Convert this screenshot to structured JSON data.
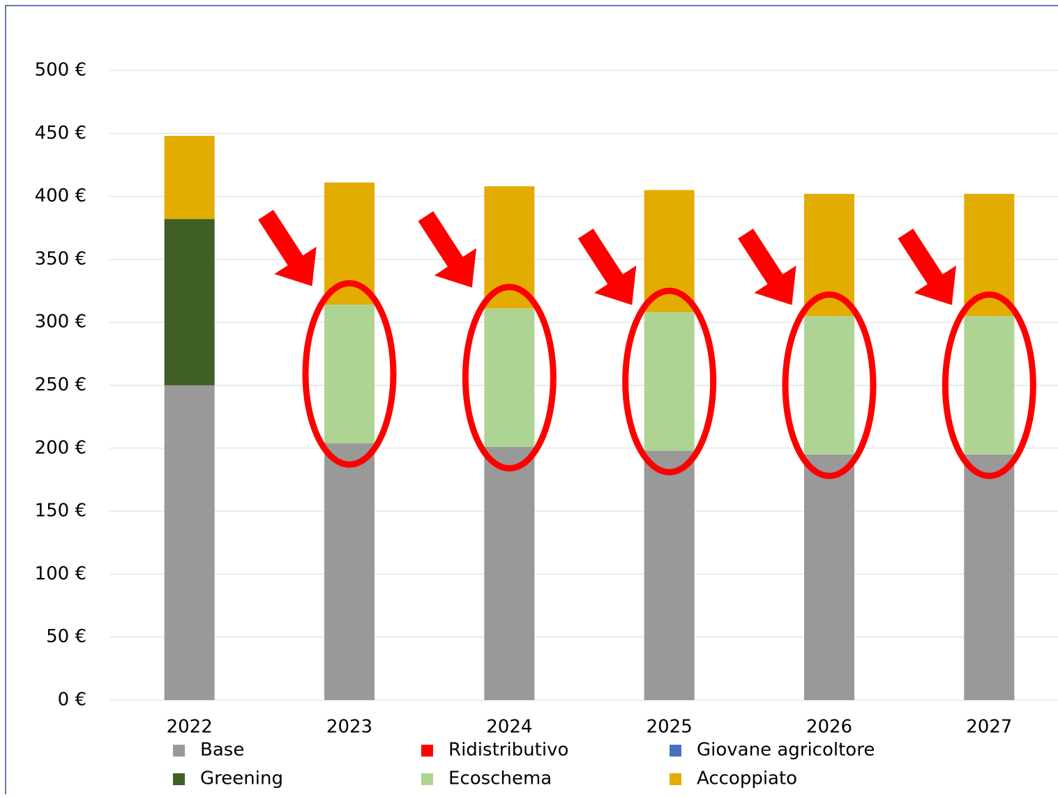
{
  "chart_data": {
    "type": "stacked_bar",
    "categories": [
      "2022",
      "2023",
      "2024",
      "2025",
      "2026",
      "2027"
    ],
    "series": [
      {
        "name": "Base",
        "color": "#999999",
        "values": [
          250,
          204,
          201,
          198,
          195,
          195
        ]
      },
      {
        "name": "Ridistributivo",
        "color": "#ff0000",
        "values": [
          0,
          0,
          0,
          0,
          0,
          0
        ]
      },
      {
        "name": "Giovane agricoltore",
        "color": "#4472c4",
        "values": [
          0,
          0,
          0,
          0,
          0,
          0
        ]
      },
      {
        "name": "Greening",
        "color": "#3f5f27",
        "values": [
          132,
          0,
          0,
          0,
          0,
          0
        ]
      },
      {
        "name": "Ecoschema",
        "color": "#aed494",
        "values": [
          0,
          110,
          110,
          110,
          110,
          110
        ]
      },
      {
        "name": "Accoppiato",
        "color": "#e2ac00",
        "values": [
          66,
          97,
          97,
          97,
          97,
          97
        ]
      }
    ],
    "ylim": [
      0,
      500
    ],
    "yticks": [
      {
        "value": 0,
        "label": "0 €"
      },
      {
        "value": 50,
        "label": "50 €"
      },
      {
        "value": 100,
        "label": "100 €"
      },
      {
        "value": 150,
        "label": "150 €"
      },
      {
        "value": 200,
        "label": "200 €"
      },
      {
        "value": 250,
        "label": "250 €"
      },
      {
        "value": 300,
        "label": "300 €"
      },
      {
        "value": 350,
        "label": "350 €"
      },
      {
        "value": 400,
        "label": "400 €"
      },
      {
        "value": 450,
        "label": "450 €"
      },
      {
        "value": 500,
        "label": "500 €"
      }
    ],
    "grid": true,
    "legend": "bottom"
  }
}
